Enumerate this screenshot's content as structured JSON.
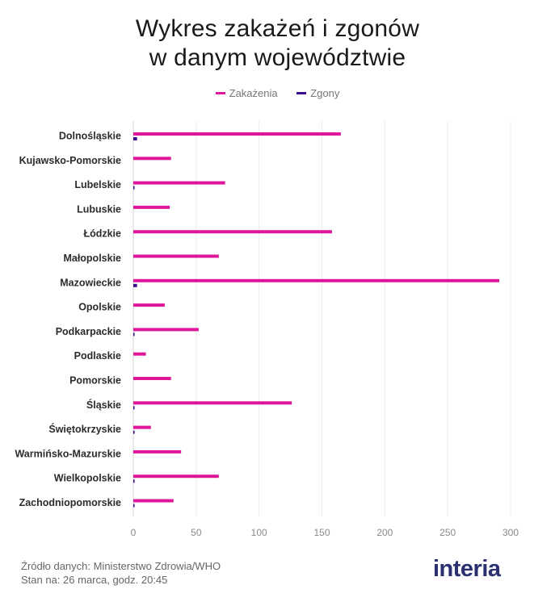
{
  "title_lines": [
    "Wykres zakażeń i zgonów",
    "w danym województwie"
  ],
  "colors": {
    "infections": "#e0169a",
    "deaths": "#3a0c8c"
  },
  "chart_data": {
    "type": "bar",
    "orientation": "horizontal",
    "title": "Wykres zakażeń i zgonów w danym województwie",
    "xlim": [
      0,
      300
    ],
    "xticks": [
      0,
      50,
      100,
      150,
      200,
      250,
      300
    ],
    "grid": true,
    "legend_position": "top-center",
    "categories": [
      "Dolnośląskie",
      "Kujawsko-Pomorskie",
      "Lubelskie",
      "Lubuskie",
      "Łódzkie",
      "Małopolskie",
      "Mazowieckie",
      "Opolskie",
      "Podkarpackie",
      "Podlaskie",
      "Pomorskie",
      "Śląskie",
      "Świętokrzyskie",
      "Warmińsko-Mazurskie",
      "Wielkopolskie",
      "Zachodniopomorskie"
    ],
    "series": [
      {
        "name": "Zakażenia",
        "values": [
          165,
          30,
          73,
          29,
          158,
          68,
          291,
          25,
          52,
          10,
          30,
          126,
          14,
          38,
          68,
          32
        ]
      },
      {
        "name": "Zgony",
        "values": [
          3,
          0,
          1,
          0,
          0,
          0,
          3,
          0,
          1,
          0,
          0,
          1,
          1,
          0,
          1,
          1
        ]
      }
    ]
  },
  "footer": {
    "source": "Źródło danych: Ministerstwo Zdrowia/WHO",
    "date": "Stan na: 26 marca, godz. 20:45"
  },
  "logo_text": "interia"
}
